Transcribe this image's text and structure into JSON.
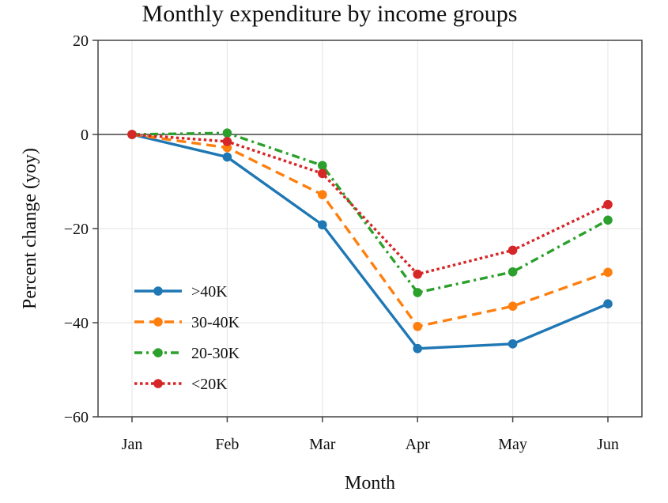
{
  "chart_data": {
    "type": "line",
    "title": "Monthly expenditure by income groups",
    "xlabel": "Month",
    "ylabel": "Percent change (yoy)",
    "categories": [
      "Jan",
      "Feb",
      "Mar",
      "Apr",
      "May",
      "Jun"
    ],
    "ylim": [
      -60,
      20
    ],
    "yticks": [
      20,
      0,
      -20,
      -40,
      -60
    ],
    "ytick_labels": [
      "20",
      "0",
      "−20",
      "−40",
      "−60"
    ],
    "grid": true,
    "zero_line": true,
    "legend_position": "lower-left",
    "series": [
      {
        "name": ">40K",
        "values": [
          0,
          -4.8,
          -19.2,
          -45.5,
          -44.5,
          -36.0
        ],
        "color": "#1f77b4",
        "dash": "solid"
      },
      {
        "name": "30-40K",
        "values": [
          0,
          -2.8,
          -12.8,
          -40.8,
          -36.5,
          -29.3
        ],
        "color": "#ff7f0e",
        "dash": "dashed"
      },
      {
        "name": "20-30K",
        "values": [
          0,
          0.3,
          -6.6,
          -33.6,
          -29.2,
          -18.2
        ],
        "color": "#2ca02c",
        "dash": "dashdot"
      },
      {
        "name": "<20K",
        "values": [
          0,
          -1.5,
          -8.3,
          -29.7,
          -24.6,
          -14.9
        ],
        "color": "#d62728",
        "dash": "dotted"
      }
    ]
  }
}
